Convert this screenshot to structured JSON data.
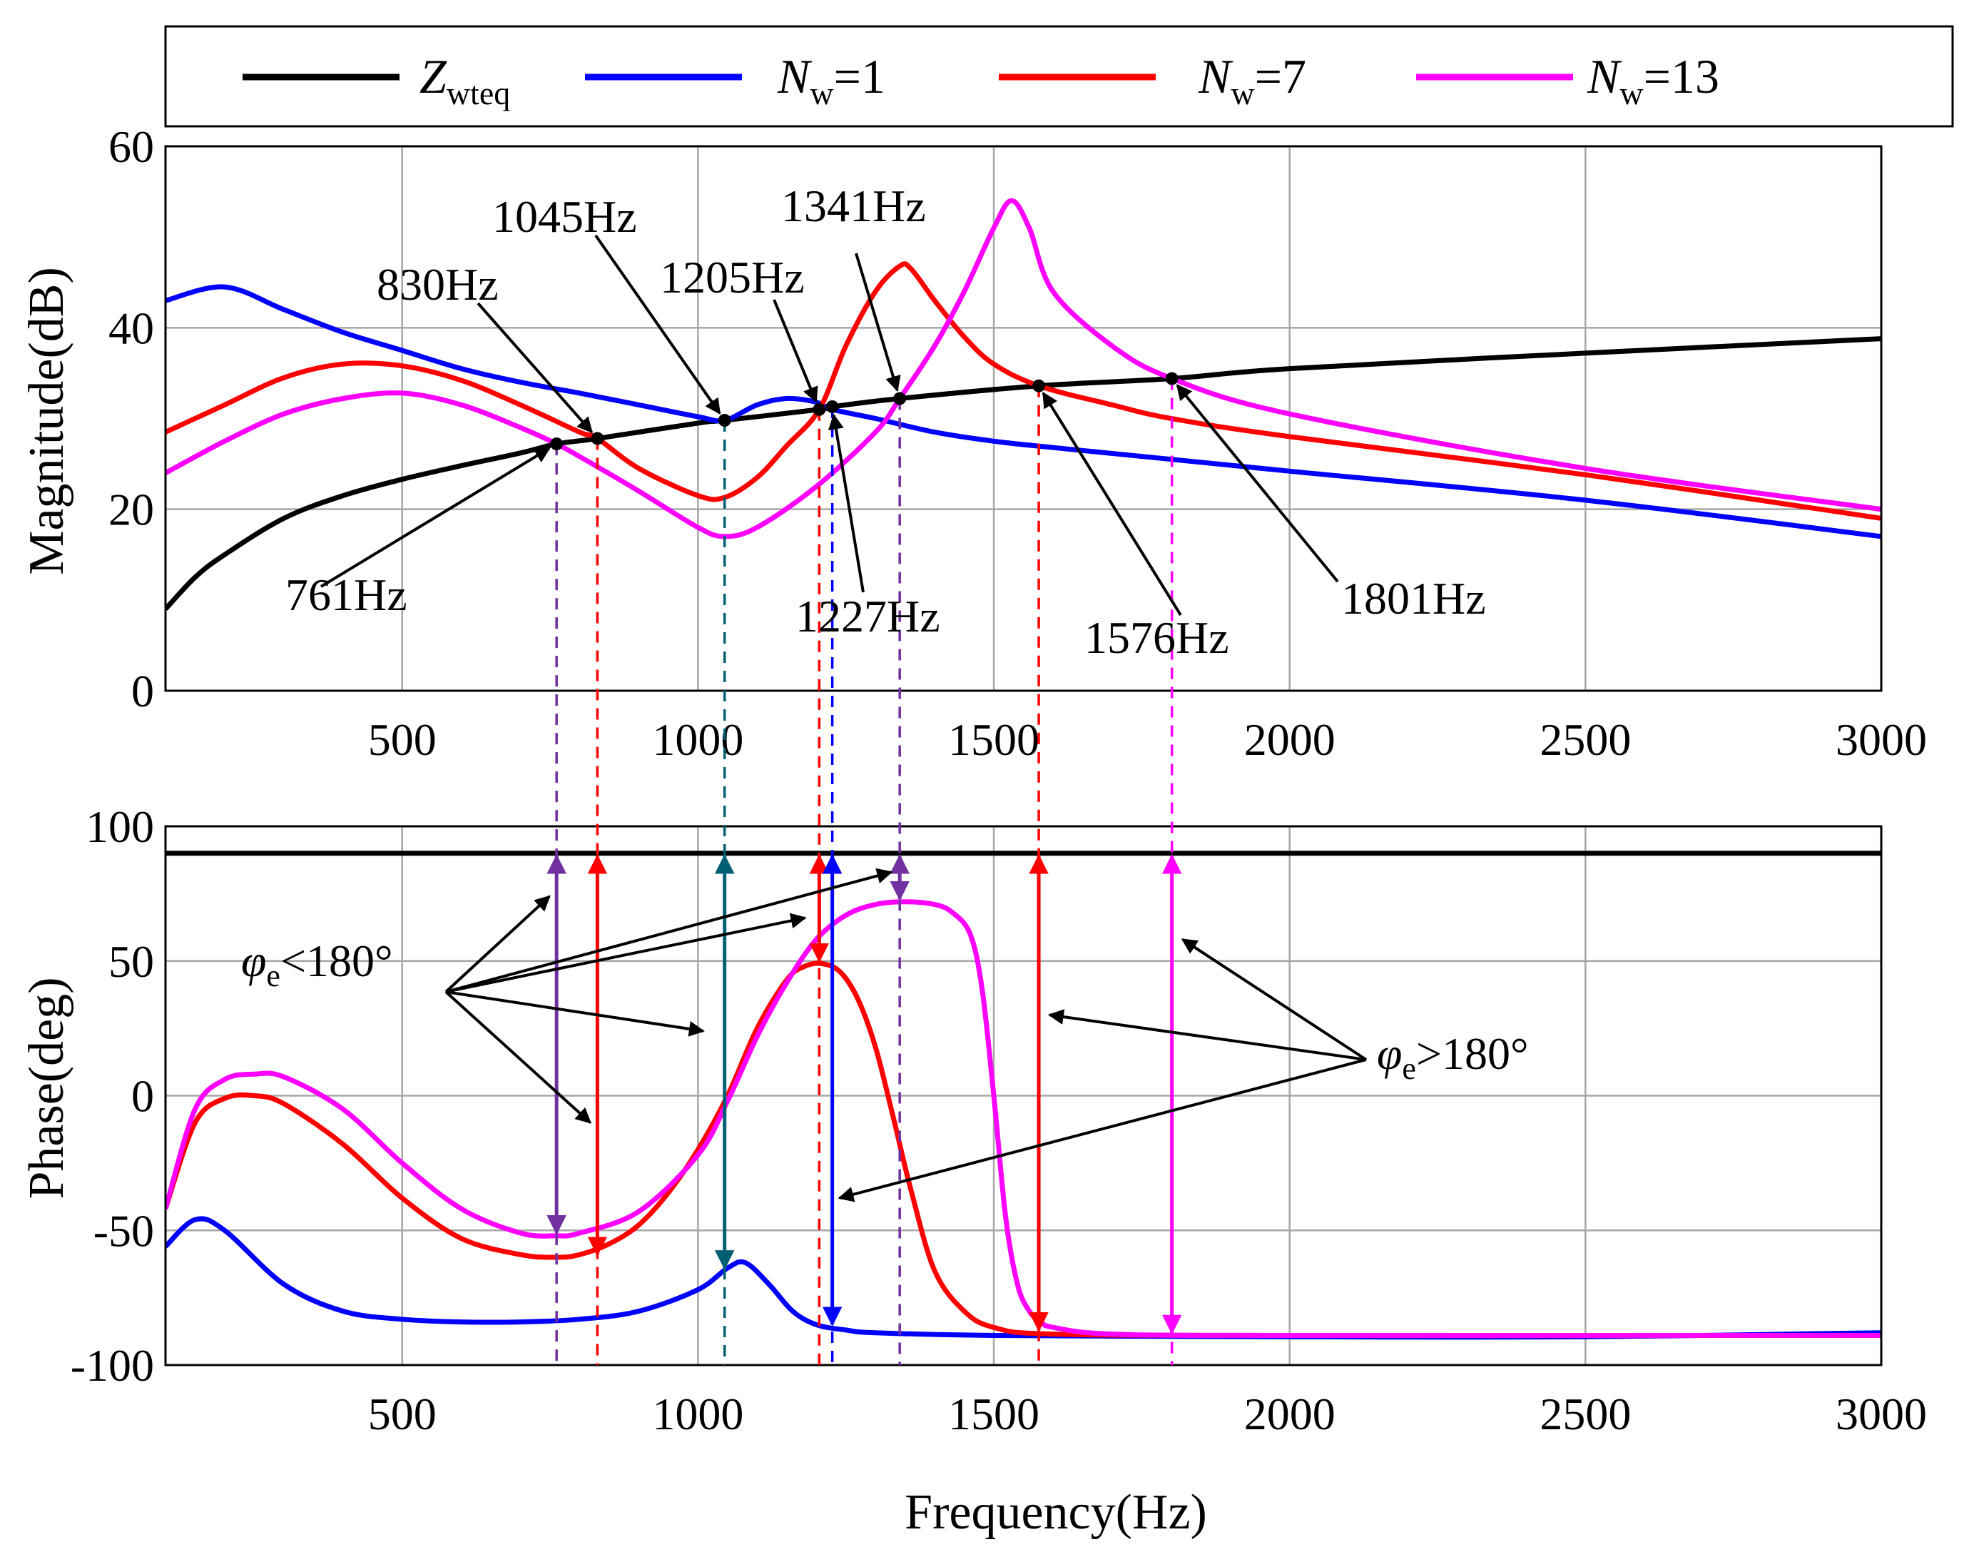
{
  "chart_data": [
    {
      "type": "line",
      "panel": "magnitude",
      "ylabel": "Magnitude(dB)",
      "xlabel": "",
      "xlim": [
        100,
        3000
      ],
      "ylim": [
        0,
        60
      ],
      "xticks": [
        500,
        1000,
        1500,
        2000,
        2500,
        3000
      ],
      "yticks": [
        0,
        20,
        40,
        60
      ],
      "xtick_labels": [
        "500",
        "1000",
        "1500",
        "2000",
        "2500",
        "3000"
      ],
      "ytick_labels": [
        "0",
        "20",
        "40",
        "60"
      ],
      "grid": true,
      "series": [
        {
          "name": "Zwteq",
          "color": "#000000",
          "x": [
            100,
            150,
            200,
            300,
            400,
            500,
            600,
            700,
            761,
            830,
            1000,
            1045,
            1205,
            1227,
            1341,
            1576,
            1801,
            2000,
            2500,
            3000
          ],
          "y": [
            9,
            12.5,
            15,
            19,
            21.5,
            23.3,
            24.8,
            26.2,
            27.2,
            27.8,
            29.5,
            29.8,
            31,
            31.3,
            32.2,
            33.6,
            34.4,
            35.5,
            37.2,
            38.8
          ]
        },
        {
          "name": "Nw=1",
          "color": "#0000ff",
          "x": [
            100,
            200,
            300,
            400,
            500,
            600,
            700,
            800,
            900,
            1000,
            1045,
            1100,
            1150,
            1200,
            1227,
            1300,
            1400,
            1500,
            1600,
            1800,
            2000,
            2500,
            3000
          ],
          "y": [
            43,
            44.5,
            42,
            39.5,
            37.5,
            35.5,
            34,
            32.8,
            31.5,
            30.2,
            29.8,
            31.5,
            32.2,
            31.8,
            31,
            30,
            28.5,
            27.5,
            26.8,
            25.5,
            24.2,
            21,
            17
          ]
        },
        {
          "name": "Nw=7",
          "color": "#ff0000",
          "x": [
            100,
            200,
            300,
            400,
            500,
            600,
            700,
            800,
            830,
            900,
            1000,
            1045,
            1100,
            1150,
            1205,
            1250,
            1300,
            1341,
            1360,
            1400,
            1450,
            1500,
            1576,
            1700,
            1800,
            2000,
            2500,
            3000
          ],
          "y": [
            28.5,
            31.5,
            34.5,
            36,
            35.8,
            34.2,
            31.5,
            28.5,
            27.8,
            24.5,
            21.5,
            21.3,
            23.5,
            27,
            31,
            38,
            44,
            46.8,
            46.5,
            43,
            39,
            36,
            33.6,
            31.5,
            30,
            28,
            23.8,
            19
          ]
        },
        {
          "name": "Nw=13",
          "color": "#ff00ff",
          "x": [
            100,
            200,
            300,
            400,
            500,
            600,
            700,
            761,
            800,
            900,
            1000,
            1045,
            1100,
            1200,
            1300,
            1341,
            1400,
            1450,
            1500,
            1530,
            1560,
            1600,
            1700,
            1801,
            2000,
            2500,
            3000
          ],
          "y": [
            24,
            27.5,
            30.5,
            32.2,
            32.8,
            31.5,
            29,
            27.2,
            25.8,
            22,
            18,
            17,
            18,
            22.5,
            28.5,
            32.2,
            38,
            44,
            51,
            54,
            51,
            44,
            38,
            34.4,
            30.5,
            24.5,
            20
          ]
        }
      ],
      "annotations": [
        {
          "label": "761Hz",
          "x": 761,
          "y": 27.2
        },
        {
          "label": "830Hz",
          "x": 830,
          "y": 27.8
        },
        {
          "label": "1045Hz",
          "x": 1045,
          "y": 29.8
        },
        {
          "label": "1205Hz",
          "x": 1205,
          "y": 31.0
        },
        {
          "label": "1227Hz",
          "x": 1227,
          "y": 31.3
        },
        {
          "label": "1341Hz",
          "x": 1341,
          "y": 32.2
        },
        {
          "label": "1576Hz",
          "x": 1576,
          "y": 33.6
        },
        {
          "label": "1801Hz",
          "x": 1801,
          "y": 34.4
        }
      ]
    },
    {
      "type": "line",
      "panel": "phase",
      "ylabel": "Phase(deg)",
      "xlabel": "Frequency(Hz)",
      "xlim": [
        100,
        3000
      ],
      "ylim": [
        -100,
        100
      ],
      "xticks": [
        500,
        1000,
        1500,
        2000,
        2500,
        3000
      ],
      "yticks": [
        -100,
        -50,
        0,
        50,
        100
      ],
      "xtick_labels": [
        "500",
        "1000",
        "1500",
        "2000",
        "2500",
        "3000"
      ],
      "ytick_labels": [
        "-100",
        "-50",
        "0",
        "50",
        "100"
      ],
      "grid": true,
      "series": [
        {
          "name": "Zwteq",
          "color": "#000000",
          "x": [
            100,
            3000
          ],
          "y": [
            90,
            90
          ]
        },
        {
          "name": "Nw=1",
          "color": "#0000ff",
          "x": [
            100,
            150,
            200,
            300,
            400,
            500,
            600,
            700,
            800,
            900,
            1000,
            1050,
            1080,
            1120,
            1160,
            1200,
            1250,
            1300,
            1500,
            2000,
            2500,
            3000
          ],
          "y": [
            -56,
            -46,
            -50,
            -70,
            -80,
            -83,
            -84,
            -84,
            -83,
            -80,
            -72,
            -64,
            -62,
            -70,
            -80,
            -85,
            -87,
            -88,
            -89,
            -89.5,
            -89.5,
            -88
          ]
        },
        {
          "name": "Nw=7",
          "color": "#ff0000",
          "x": [
            100,
            150,
            200,
            250,
            300,
            400,
            500,
            600,
            700,
            761,
            800,
            850,
            900,
            950,
            1000,
            1050,
            1100,
            1150,
            1180,
            1210,
            1240,
            1270,
            1300,
            1330,
            1360,
            1400,
            1450,
            1500,
            1600,
            2000,
            3000
          ],
          "y": [
            -42,
            -10,
            -1,
            0,
            -3,
            -18,
            -38,
            -53,
            -59,
            -60,
            -59,
            -55,
            -48,
            -36,
            -20,
            0,
            25,
            43,
            48,
            49,
            46,
            36,
            18,
            -8,
            -35,
            -65,
            -80,
            -86,
            -88.5,
            -89,
            -89
          ]
        },
        {
          "name": "Nw=13",
          "color": "#ff00ff",
          "x": [
            100,
            150,
            200,
            250,
            300,
            400,
            500,
            600,
            700,
            761,
            800,
            900,
            1000,
            1050,
            1100,
            1150,
            1200,
            1250,
            1300,
            1350,
            1400,
            1430,
            1460,
            1480,
            1500,
            1520,
            1540,
            1560,
            1580,
            1600,
            1700,
            2000,
            3000
          ],
          "y": [
            -42,
            -5,
            6,
            8,
            7,
            -5,
            -25,
            -42,
            -51,
            -52,
            -51,
            -43,
            -22,
            -2,
            22,
            42,
            58,
            67,
            71,
            72,
            71,
            68,
            60,
            40,
            0,
            -45,
            -70,
            -80,
            -84,
            -86,
            -88.5,
            -89,
            -89
          ]
        }
      ],
      "annotations": [
        {
          "label": "φe<180°",
          "targets_hz": [
            761,
            830,
            1045,
            1205,
            1341
          ]
        },
        {
          "label": "φe>180°",
          "targets_hz": [
            1227,
            1576,
            1801
          ]
        }
      ]
    }
  ],
  "legend": [
    {
      "label_main": "Z",
      "label_sub": "wteq",
      "label_tail": "",
      "color": "#000000"
    },
    {
      "label_main": "N",
      "label_sub": "w",
      "label_tail": "=1",
      "color": "#0000ff"
    },
    {
      "label_main": "N",
      "label_sub": "w",
      "label_tail": "=7",
      "color": "#ff0000"
    },
    {
      "label_main": "N",
      "label_sub": "w",
      "label_tail": "=13",
      "color": "#ff00ff"
    }
  ],
  "phase_label_lt": {
    "main": "φ",
    "sub": "e",
    "tail": "<180°"
  },
  "phase_label_gt": {
    "main": "φ",
    "sub": "e",
    "tail": ">180°"
  },
  "markers": [
    {
      "hz": 761,
      "color": "#7030a0",
      "phase_lo": -52,
      "phase_hi": 90
    },
    {
      "hz": 830,
      "color": "#ff0000",
      "phase_lo": -60,
      "phase_hi": 90
    },
    {
      "hz": 1045,
      "color": "#005f73",
      "phase_lo": -65,
      "phase_hi": 90
    },
    {
      "hz": 1205,
      "color": "#ff0000",
      "phase_lo": 49,
      "phase_hi": 90
    },
    {
      "hz": 1227,
      "color": "#0000ff",
      "phase_lo": -86,
      "phase_hi": 90
    },
    {
      "hz": 1341,
      "color": "#7030a0",
      "phase_lo": 72,
      "phase_hi": 90
    },
    {
      "hz": 1576,
      "color": "#ff0000",
      "phase_lo": -88,
      "phase_hi": 90
    },
    {
      "hz": 1801,
      "color": "#ff00ff",
      "phase_lo": -89,
      "phase_hi": 90
    }
  ]
}
